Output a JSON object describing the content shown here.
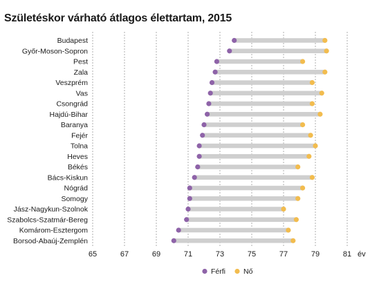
{
  "title": "Születéskor várható átlagos élettartam, 2015",
  "chart_data": {
    "type": "dumbbell",
    "title": "Születéskor várható átlagos élettartam, 2015",
    "xlabel": "év",
    "xlim": [
      65,
      82
    ],
    "x_ticks": [
      65,
      67,
      69,
      71,
      73,
      75,
      77,
      79,
      81
    ],
    "grid": "vertical dashed",
    "legend_position": "bottom-center",
    "categories": [
      "Budapest",
      "Győr-Moson-Sopron",
      "Pest",
      "Zala",
      "Veszprém",
      "Vas",
      "Csongrád",
      "Hajdú-Bihar",
      "Baranya",
      "Fejér",
      "Tolna",
      "Heves",
      "Békés",
      "Bács-Kiskun",
      "Nógrád",
      "Somogy",
      "Jász-Nagykun-Szolnok",
      "Szabolcs-Szatmár-Bereg",
      "Komárom-Esztergom",
      "Borsod-Abaúj-Zemplén"
    ],
    "series": [
      {
        "name": "Férfi",
        "color": "#8e63a8",
        "values": [
          73.9,
          73.6,
          72.8,
          72.7,
          72.5,
          72.4,
          72.3,
          72.2,
          72.0,
          71.9,
          71.7,
          71.7,
          71.6,
          71.4,
          71.1,
          71.1,
          71.0,
          70.9,
          70.4,
          70.1
        ]
      },
      {
        "name": "Nő",
        "color": "#f2bc4e",
        "values": [
          79.6,
          79.7,
          78.2,
          79.6,
          78.8,
          79.4,
          78.8,
          79.3,
          78.2,
          78.7,
          79.0,
          78.6,
          77.9,
          78.8,
          78.2,
          77.9,
          77.0,
          77.8,
          77.3,
          77.6
        ]
      }
    ],
    "connector_color": "#cfcfcf"
  }
}
